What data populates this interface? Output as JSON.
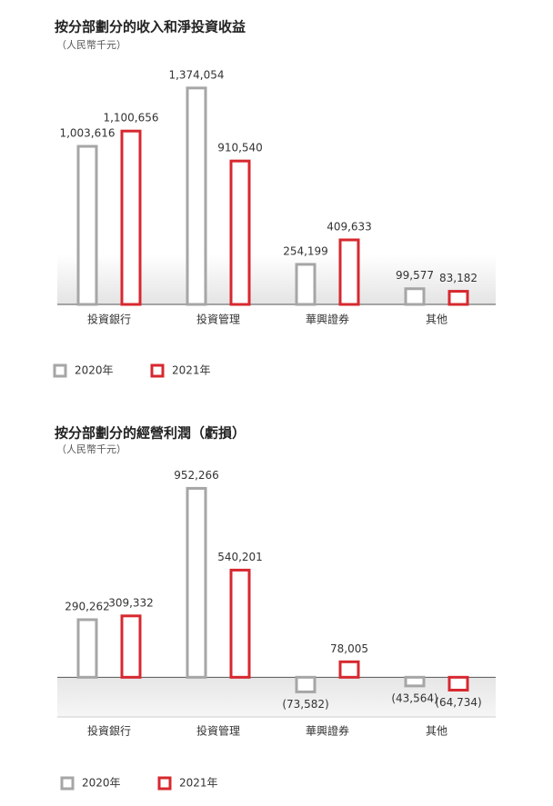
{
  "chart_data": [
    {
      "type": "bar",
      "title": "按分部劃分的收入和淨投資收益",
      "subtitle": "（人民幣千元）",
      "categories": [
        "投資銀行",
        "投資管理",
        "華興證券",
        "其他"
      ],
      "series": [
        {
          "name": "2020年",
          "color": "#a6a6a6",
          "values": [
            1003616,
            1374054,
            254199,
            99577
          ],
          "value_labels": [
            "1,003,616",
            "1,374,054",
            "254,199",
            "99,577"
          ]
        },
        {
          "name": "2021年",
          "color": "#d7282f",
          "values": [
            1100656,
            910540,
            409633,
            83182
          ],
          "value_labels": [
            "1,100,656",
            "910,540",
            "409,633",
            "83,182"
          ]
        }
      ],
      "ylim": [
        0,
        1500000
      ]
    },
    {
      "type": "bar",
      "title": "按分部劃分的經營利潤（虧損）",
      "subtitle": "（人民幣千元）",
      "categories": [
        "投資銀行",
        "投資管理",
        "華興證券",
        "其他"
      ],
      "series": [
        {
          "name": "2020年",
          "color": "#a6a6a6",
          "values": [
            290262,
            952266,
            -73582,
            -43564
          ],
          "value_labels": [
            "290,262",
            "952,266",
            "(73,582)",
            "(43,564)"
          ]
        },
        {
          "name": "2021年",
          "color": "#d7282f",
          "values": [
            309332,
            540201,
            78005,
            -64734
          ],
          "value_labels": [
            "309,332",
            "540,201",
            "78,005",
            "(64,734)"
          ]
        }
      ],
      "ylim": [
        -200000,
        1000000
      ]
    }
  ]
}
